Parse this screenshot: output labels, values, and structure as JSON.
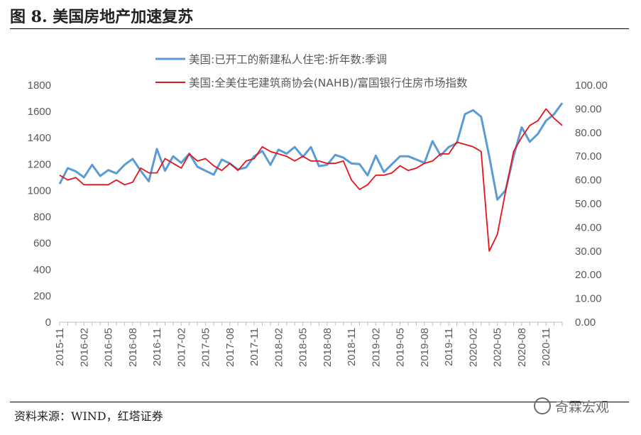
{
  "title": "图 8. 美国房地产加速复苏",
  "source": "资料来源：WIND，红塔证券",
  "watermark": "奇霖宏观",
  "chart_data": {
    "type": "line",
    "title": "图 8. 美国房地产加速复苏",
    "x": [
      "2015-11",
      "2015-12",
      "2016-01",
      "2016-02",
      "2016-03",
      "2016-04",
      "2016-05",
      "2016-06",
      "2016-07",
      "2016-08",
      "2016-09",
      "2016-10",
      "2016-11",
      "2016-12",
      "2017-01",
      "2017-02",
      "2017-03",
      "2017-04",
      "2017-05",
      "2017-06",
      "2017-07",
      "2017-08",
      "2017-09",
      "2017-10",
      "2017-11",
      "2017-12",
      "2018-01",
      "2018-02",
      "2018-03",
      "2018-04",
      "2018-05",
      "2018-06",
      "2018-07",
      "2018-08",
      "2018-09",
      "2018-10",
      "2018-11",
      "2018-12",
      "2019-01",
      "2019-02",
      "2019-03",
      "2019-04",
      "2019-05",
      "2019-06",
      "2019-07",
      "2019-08",
      "2019-09",
      "2019-10",
      "2019-11",
      "2019-12",
      "2020-01",
      "2020-02",
      "2020-03",
      "2020-04",
      "2020-05",
      "2020-06",
      "2020-07",
      "2020-08",
      "2020-09",
      "2020-10",
      "2020-11",
      "2020-12",
      "2021-01"
    ],
    "x_tick_labels": [
      "2015-11",
      "2016-02",
      "2016-05",
      "2016-08",
      "2016-11",
      "2017-02",
      "2017-05",
      "2017-08",
      "2017-11",
      "2018-02",
      "2018-05",
      "2018-08",
      "2018-11",
      "2019-02",
      "2019-05",
      "2019-08",
      "2019-11",
      "2020-02",
      "2020-05",
      "2020-08",
      "2020-11"
    ],
    "y_left": {
      "ticks": [
        "0",
        "200",
        "400",
        "600",
        "800",
        "1000",
        "1200",
        "1400",
        "1600",
        "1800"
      ],
      "range": [
        0,
        1800
      ]
    },
    "y_right": {
      "ticks": [
        "0.00",
        "10.00",
        "20.00",
        "30.00",
        "40.00",
        "50.00",
        "60.00",
        "70.00",
        "80.00",
        "90.00",
        "100.00"
      ],
      "range": [
        0,
        100
      ]
    },
    "series": [
      {
        "name": "美国:已开工的新建私人住宅:折年数:季调",
        "axis": "left",
        "color": "#5B9BD5",
        "values": [
          1050,
          1170,
          1145,
          1100,
          1195,
          1110,
          1155,
          1130,
          1195,
          1240,
          1150,
          1070,
          1315,
          1150,
          1260,
          1210,
          1280,
          1180,
          1150,
          1120,
          1235,
          1205,
          1160,
          1175,
          1260,
          1300,
          1195,
          1310,
          1280,
          1330,
          1255,
          1330,
          1185,
          1195,
          1270,
          1250,
          1205,
          1200,
          1115,
          1265,
          1140,
          1200,
          1260,
          1260,
          1235,
          1210,
          1375,
          1265,
          1330,
          1360,
          1580,
          1610,
          1560,
          1260,
          930,
          1000,
          1260,
          1480,
          1370,
          1430,
          1530,
          1580,
          1665
        ]
      },
      {
        "name": "美国:全美住宅建筑商协会(NAHB)/富国银行住房市场指数",
        "axis": "right",
        "color": "#E3141B",
        "values": [
          62,
          60,
          61,
          58,
          58,
          58,
          58,
          60,
          58,
          59,
          65,
          63,
          63,
          69,
          67,
          65,
          71,
          68,
          69,
          66,
          64,
          67,
          64,
          68,
          69,
          74,
          72,
          71,
          70,
          68,
          70,
          68,
          68,
          67,
          67,
          68,
          60,
          56,
          58,
          62,
          62,
          63,
          66,
          64,
          65,
          67,
          68,
          71,
          71,
          76,
          75,
          74,
          72,
          30,
          37,
          55,
          72,
          78,
          83,
          85,
          90,
          86,
          83
        ]
      }
    ]
  }
}
